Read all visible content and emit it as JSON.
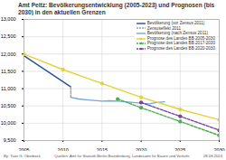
{
  "chart_data": {
    "type": "line",
    "title": "Amt Peitz:  Bevölkerungsentwicklung (2005-2023) und Prognosen (bis 2030) in den aktuellen Grenzen",
    "annotations": [
      "By: Tiani G. Oberbeck",
      "Quellen: Amt für Statistik Berlin-Brandenburg, Landesamt für Bauen und Verkehr",
      "28.08.2024"
    ],
    "xlim": [
      2005,
      2030
    ],
    "xticks": [
      2005,
      2010,
      2015,
      2020,
      2025,
      2030
    ],
    "ylim": [
      9500,
      13000
    ],
    "yticks": [
      {
        "value": 9500,
        "label": "9,500"
      },
      {
        "value": 10000,
        "label": "10,000"
      },
      {
        "value": 10500,
        "label": "10,500"
      },
      {
        "value": 11000,
        "label": "11,000"
      },
      {
        "value": 11500,
        "label": "11,500"
      },
      {
        "value": 12000,
        "label": "12,000"
      },
      {
        "value": 12500,
        "label": "12,500"
      },
      {
        "value": 13000,
        "label": "13,000"
      }
    ],
    "grid": true,
    "legend": "top-right",
    "series": [
      {
        "name": "Bevölkerung (vor Zensus 2011)",
        "color": "#27509b",
        "line_style": "solid",
        "marker": "none",
        "x": [
          2005,
          2006,
          2007,
          2008,
          2009,
          2010,
          2011
        ],
        "values": [
          11950,
          11800,
          11650,
          11500,
          11350,
          11200,
          11050
        ]
      },
      {
        "name": "Zensuseffekt 2011",
        "color": "#a0a0a0",
        "line_style": "dashed",
        "marker": "none",
        "x": [
          2011,
          2011
        ],
        "values": [
          11050,
          10750
        ]
      },
      {
        "name": "Bevölkerung (nach Zensus 2011)",
        "color": "#6fa8dc",
        "line_style": "solid",
        "marker": "none",
        "x": [
          2011,
          2012,
          2013,
          2014,
          2015,
          2016,
          2017,
          2018,
          2019,
          2020,
          2021,
          2022,
          2023
        ],
        "values": [
          10750,
          10700,
          10680,
          10660,
          10640,
          10650,
          10640,
          10620,
          10600,
          10580,
          10560,
          10600,
          10620
        ]
      },
      {
        "name": "Prognose des Landes BB 2005-2030",
        "color": "#e3d33a",
        "line_style": "solid",
        "marker": "circle",
        "x": [
          2005,
          2010,
          2015,
          2020,
          2025,
          2030
        ],
        "values": [
          12000,
          11550,
          11150,
          10750,
          10400,
          10100
        ]
      },
      {
        "name": "Prognose des Landes BB 2017-2030",
        "color": "#4caf50",
        "line_style": "dashed",
        "marker": "circle",
        "x": [
          2017,
          2020,
          2025,
          2030
        ],
        "values": [
          10700,
          10450,
          10050,
          9650
        ]
      },
      {
        "name": "Prognose des Landes BB 2020-2030",
        "color": "#7b3f9e",
        "line_style": "dashed",
        "marker": "circle",
        "x": [
          2020,
          2025,
          2030
        ],
        "values": [
          10600,
          10200,
          9800
        ]
      }
    ]
  }
}
